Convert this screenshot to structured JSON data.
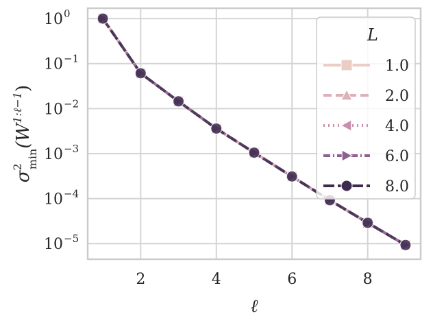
{
  "chart_data": {
    "type": "line",
    "x": [
      1,
      2,
      3,
      4,
      5,
      6,
      7,
      8,
      9
    ],
    "x_ticks": [
      "2",
      "4",
      "6",
      "8"
    ],
    "x_tick_values": [
      2,
      4,
      6,
      8
    ],
    "xlim": [
      0.6,
      9.4
    ],
    "xlabel": "ℓ",
    "ylabel_parts": {
      "base": "σ",
      "sup": "2",
      "sub": "min",
      "arg": "(W",
      "arg_sup": "1:ℓ−1",
      "close": ")"
    },
    "y_scale": "log",
    "ylim": [
      4.5e-06,
      1.7
    ],
    "y_ticks": [
      {
        "value": 1,
        "base": "10",
        "exp": "0"
      },
      {
        "value": 0.1,
        "base": "10",
        "exp": "−1"
      },
      {
        "value": 0.01,
        "base": "10",
        "exp": "−2"
      },
      {
        "value": 0.001,
        "base": "10",
        "exp": "−3"
      },
      {
        "value": 0.0001,
        "base": "10",
        "exp": "−4"
      },
      {
        "value": 1e-05,
        "base": "10",
        "exp": "−5"
      }
    ],
    "grid": true,
    "legend": {
      "title": "L",
      "placement": "top-right"
    },
    "series": [
      {
        "name": "1.0",
        "color": "#ebcdc6",
        "marker": "square",
        "dash": "solid",
        "values": [
          1.0,
          0.061,
          0.0145,
          0.0036,
          0.00105,
          0.00031,
          9.2e-05,
          2.9e-05,
          9.3e-06
        ]
      },
      {
        "name": "2.0",
        "color": "#deb0b8",
        "marker": "triangle-up",
        "dash": "dashed",
        "values": [
          1.0,
          0.061,
          0.0145,
          0.0036,
          0.00105,
          0.00031,
          9.2e-05,
          2.9e-05,
          9.3e-06
        ]
      },
      {
        "name": "4.0",
        "color": "#c98fac",
        "marker": "triangle-left",
        "dash": "dotted",
        "values": [
          1.0,
          0.061,
          0.0145,
          0.0036,
          0.00105,
          0.00031,
          9.2e-05,
          2.9e-05,
          9.3e-06
        ]
      },
      {
        "name": "6.0",
        "color": "#8e6090",
        "marker": "triangle-right",
        "dash": "dashdot",
        "values": [
          1.0,
          0.061,
          0.0145,
          0.0036,
          0.00105,
          0.00031,
          9.2e-05,
          2.9e-05,
          9.3e-06
        ]
      },
      {
        "name": "8.0",
        "color": "#3d2a4e",
        "marker": "circle",
        "dash": "longdash",
        "values": [
          1.0,
          0.061,
          0.0145,
          0.0036,
          0.00105,
          0.00031,
          9.2e-05,
          2.9e-05,
          9.3e-06
        ]
      }
    ]
  }
}
